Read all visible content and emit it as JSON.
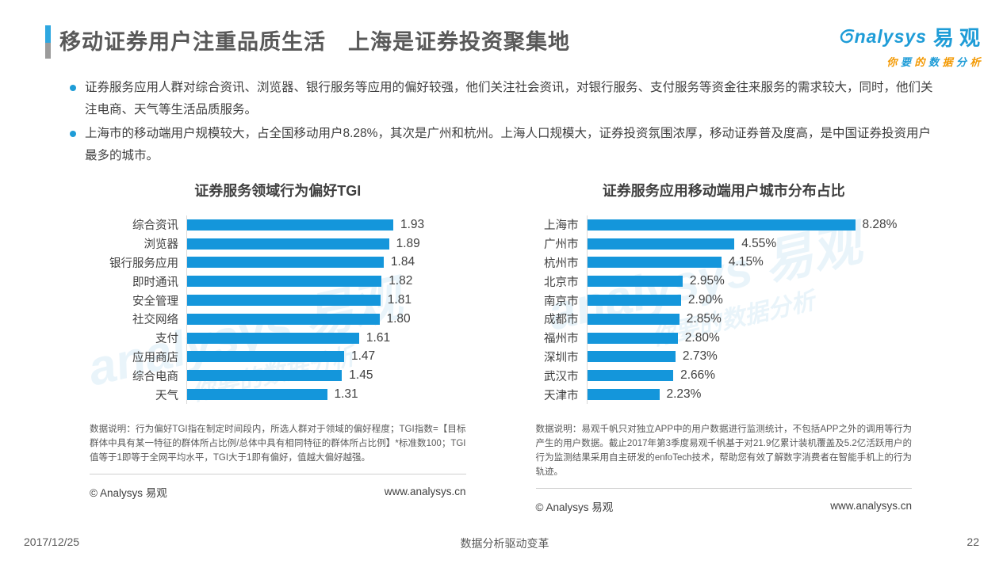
{
  "page": {
    "title": "移动证券用户注重品质生活　上海是证券投资聚集地",
    "footer": {
      "date": "2017/12/25",
      "slogan": "数据分析驱动变革",
      "page_number": "22"
    }
  },
  "logo": {
    "brand_en": "nalysys",
    "brand_cn": "易观",
    "tagline": "你要的数据分析"
  },
  "bullets": [
    "证券服务应用人群对综合资讯、浏览器、银行服务等应用的偏好较强，他们关注社会资讯，对银行服务、支付服务等资金往来服务的需求较大，同时，他们关注电商、天气等生活品质服务。",
    "上海市的移动端用户规模较大，占全国移动用户8.28%，其次是广州和杭州。上海人口规模大，证券投资氛围浓厚，移动证券普及度高，是中国证券投资用户最多的城市。"
  ],
  "colors": {
    "bar_blue": "#1496DB",
    "brand_blue": "#1E9CD7",
    "brand_orange": "#F39800",
    "title_gray": "#595959",
    "text_dark": "#404040"
  },
  "watermark": {
    "line1": "analysys 易观",
    "line2": "你要的数据分析"
  },
  "chart_data": [
    {
      "type": "bar",
      "orientation": "horizontal",
      "title": "证券服务领域行为偏好TGI",
      "categories": [
        "综合资讯",
        "浏览器",
        "银行服务应用",
        "即时通讯",
        "安全管理",
        "社交网络",
        "支付",
        "应用商店",
        "综合电商",
        "天气"
      ],
      "values": [
        1.93,
        1.89,
        1.84,
        1.82,
        1.81,
        1.8,
        1.61,
        1.47,
        1.45,
        1.31
      ],
      "value_labels": [
        "1.93",
        "1.89",
        "1.84",
        "1.82",
        "1.81",
        "1.80",
        "1.61",
        "1.47",
        "1.45",
        "1.31"
      ],
      "xlim": [
        0,
        1.93
      ],
      "grid": false,
      "legend": null,
      "footnote": "数据说明：行为偏好TGI指在制定时间段内，所选人群对于领域的偏好程度；TGI指数=【目标群体中具有某一特征的群体所占比例/总体中具有相同特征的群体所占比例】*标准数100；TGI值等于1即等于全网平均水平，TGI大于1即有偏好，值越大偏好越强。",
      "source": "© Analysys 易观",
      "website": "www.analysys.cn"
    },
    {
      "type": "bar",
      "orientation": "horizontal",
      "title": "证券服务应用移动端用户城市分布占比",
      "categories": [
        "上海市",
        "广州市",
        "杭州市",
        "北京市",
        "南京市",
        "成都市",
        "福州市",
        "深圳市",
        "武汉市",
        "天津市"
      ],
      "values": [
        8.28,
        4.55,
        4.15,
        2.95,
        2.9,
        2.85,
        2.8,
        2.73,
        2.66,
        2.23
      ],
      "value_labels": [
        "8.28%",
        "4.55%",
        "4.15%",
        "2.95%",
        "2.90%",
        "2.85%",
        "2.80%",
        "2.73%",
        "2.66%",
        "2.23%"
      ],
      "xlim": [
        0,
        8.28
      ],
      "grid": false,
      "legend": null,
      "footnote": "数据说明：易观千帆只对独立APP中的用户数据进行监测统计，不包括APP之外的调用等行为产生的用户数据。截止2017年第3季度易观千帆基于对21.9亿累计装机覆盖及5.2亿活跃用户的行为监测结果采用自主研发的enfoTech技术，帮助您有效了解数字消费者在智能手机上的行为轨迹。",
      "source": "© Analysys 易观",
      "website": "www.analysys.cn"
    }
  ]
}
